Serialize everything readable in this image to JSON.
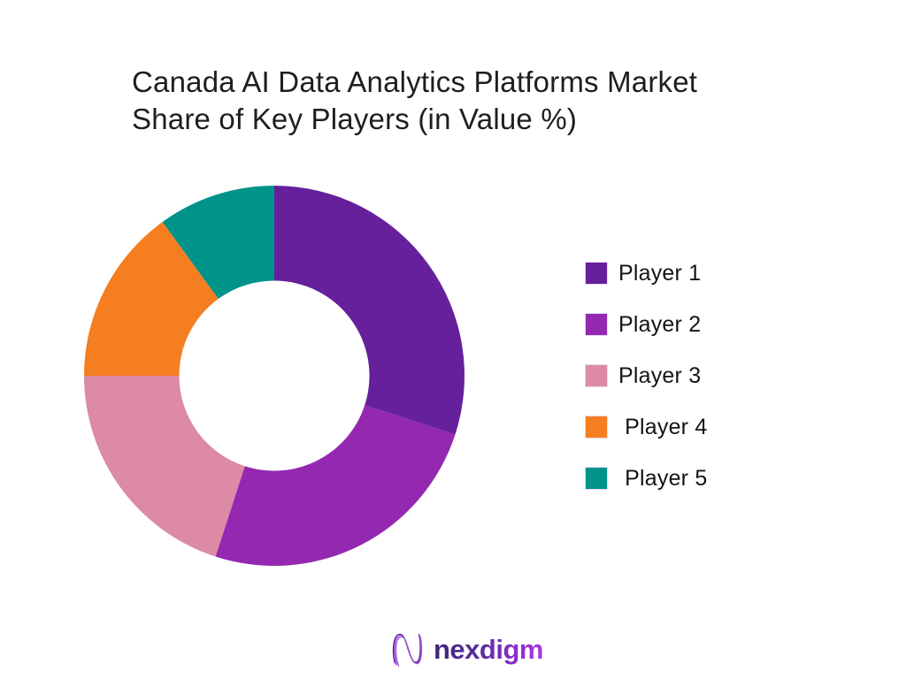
{
  "page": {
    "background_color": "#ffffff"
  },
  "title": {
    "lines": [
      "Canada AI Data Analytics Platforms Market",
      "Share of Key Players (in Value %)"
    ],
    "color": "#1e1e1e"
  },
  "chart_data": {
    "type": "pie",
    "subtype": "donut",
    "title": "Canada AI Data Analytics Platforms Market Share of Key Players (in Value %)",
    "categories": [
      "Player 1",
      "Player 2",
      "Player 3",
      "Player 4",
      "Player 5"
    ],
    "values": [
      30,
      25,
      20,
      15,
      10
    ],
    "unit": "percent of value",
    "colors": [
      "#66209B",
      "#9428B1",
      "#DC8AA5",
      "#F57E20",
      "#00938A"
    ],
    "start_angle_deg": 0,
    "direction": "clockwise",
    "inner_radius_ratio": 0.5,
    "data_labels_shown": false,
    "legend_position": "right"
  },
  "legend": {
    "items": [
      {
        "label": "Player 1",
        "color": "#66209B"
      },
      {
        "label": "Player 2",
        "color": "#9428B1"
      },
      {
        "label": "Player 3",
        "color": "#DC8AA5"
      },
      {
        "label": " Player 4",
        "color": "#F57E20"
      },
      {
        "label": " Player 5",
        "color": "#00938A"
      }
    ]
  },
  "logo": {
    "text": "nexdigm",
    "icon": "nexdigm-n-wave-icon",
    "gradient_from": "#3f2579",
    "gradient_to": "#a93ae0"
  }
}
